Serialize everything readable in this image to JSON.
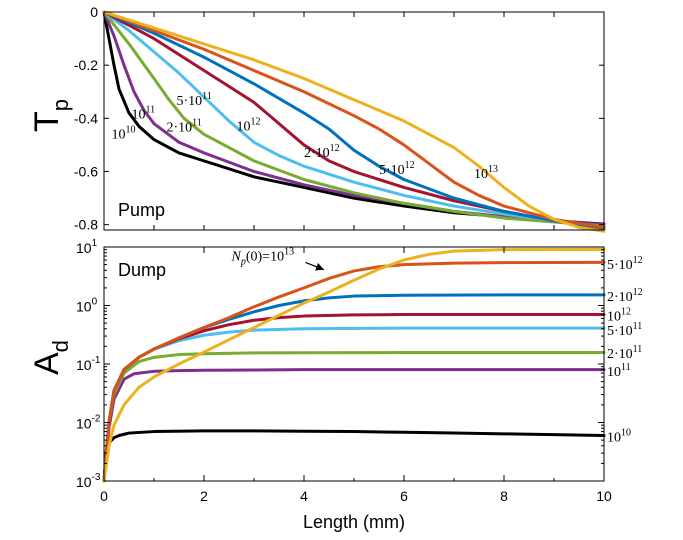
{
  "chart_data": [
    {
      "type": "line",
      "ylabel": "T",
      "ylabel_sub": "p",
      "panel_label": "Pump",
      "xlim": [
        0,
        10
      ],
      "ylim": [
        -0.82,
        0
      ],
      "yscale": "linear",
      "yticks": [
        0,
        -0.2,
        -0.4,
        -0.6,
        -0.8
      ],
      "ytick_labels": [
        "0",
        "-0.2",
        "-0.4",
        "-0.6",
        "-0.8"
      ],
      "grid": false,
      "series": [
        {
          "color": "#000000",
          "x": [
            0,
            0.1,
            0.2,
            0.3,
            0.5,
            0.7,
            1,
            1.5,
            2,
            3,
            4,
            5,
            6,
            7,
            8,
            9,
            10
          ],
          "y": [
            0,
            -0.1,
            -0.2,
            -0.29,
            -0.38,
            -0.43,
            -0.48,
            -0.53,
            -0.56,
            -0.62,
            -0.66,
            -0.7,
            -0.73,
            -0.755,
            -0.77,
            -0.785,
            -0.798
          ]
        },
        {
          "color": "#7E2F8E",
          "x": [
            0,
            0.2,
            0.4,
            0.6,
            0.8,
            1,
            1.5,
            2,
            3,
            4,
            5,
            6,
            7,
            8,
            9,
            10
          ],
          "y": [
            0,
            -0.09,
            -0.2,
            -0.3,
            -0.37,
            -0.42,
            -0.49,
            -0.53,
            -0.6,
            -0.65,
            -0.69,
            -0.72,
            -0.75,
            -0.77,
            -0.785,
            -0.8
          ]
        },
        {
          "color": "#77AC30",
          "x": [
            0,
            0.5,
            1,
            1.3,
            1.6,
            2,
            2.5,
            3,
            4,
            5,
            6,
            7,
            8,
            9,
            10
          ],
          "y": [
            0,
            -0.12,
            -0.25,
            -0.33,
            -0.4,
            -0.46,
            -0.51,
            -0.56,
            -0.63,
            -0.68,
            -0.72,
            -0.75,
            -0.775,
            -0.79,
            -0.805
          ]
        },
        {
          "color": "#4DBEEE",
          "x": [
            0,
            0.5,
            1,
            1.5,
            2,
            2.5,
            3,
            3.5,
            4,
            5,
            6,
            7,
            8,
            9,
            10
          ],
          "y": [
            0,
            -0.07,
            -0.15,
            -0.23,
            -0.32,
            -0.41,
            -0.49,
            -0.54,
            -0.58,
            -0.64,
            -0.69,
            -0.73,
            -0.76,
            -0.785,
            -0.81
          ]
        },
        {
          "color": "#A2142F",
          "x": [
            0,
            1,
            2,
            3,
            3.5,
            4,
            4.5,
            5,
            6,
            7,
            8,
            9,
            10
          ],
          "y": [
            0,
            -0.1,
            -0.22,
            -0.34,
            -0.42,
            -0.5,
            -0.56,
            -0.6,
            -0.66,
            -0.71,
            -0.75,
            -0.785,
            -0.815
          ]
        },
        {
          "color": "#0072BD",
          "x": [
            0,
            1,
            2,
            3,
            4,
            4.5,
            5,
            5.5,
            6,
            7,
            8,
            9,
            10
          ],
          "y": [
            0,
            -0.08,
            -0.17,
            -0.27,
            -0.38,
            -0.44,
            -0.52,
            -0.58,
            -0.63,
            -0.7,
            -0.75,
            -0.785,
            -0.815
          ]
        },
        {
          "color": "#D95319",
          "x": [
            0,
            1,
            2,
            3,
            4,
            5,
            5.5,
            6,
            6.5,
            7,
            7.5,
            8,
            9,
            10
          ],
          "y": [
            0,
            -0.07,
            -0.14,
            -0.22,
            -0.3,
            -0.39,
            -0.44,
            -0.5,
            -0.57,
            -0.64,
            -0.69,
            -0.73,
            -0.78,
            -0.81
          ]
        },
        {
          "color": "#EDB120",
          "x": [
            0,
            1,
            2,
            3,
            4,
            5,
            6,
            7,
            7.5,
            8,
            8.5,
            9,
            9.5,
            10
          ],
          "y": [
            0,
            -0.06,
            -0.12,
            -0.18,
            -0.25,
            -0.33,
            -0.41,
            -0.51,
            -0.58,
            -0.66,
            -0.73,
            -0.78,
            -0.81,
            -0.825
          ]
        }
      ],
      "annotations": [
        {
          "base": "10",
          "exp": "10",
          "x": 0.15,
          "y": -0.475
        },
        {
          "base": "10",
          "exp": "11",
          "x": 0.55,
          "y": -0.4
        },
        {
          "base": "2·10",
          "exp": "11",
          "x": 1.25,
          "y": -0.45
        },
        {
          "base": "5·10",
          "exp": "11",
          "x": 1.45,
          "y": -0.35
        },
        {
          "base": "10",
          "exp": "12",
          "x": 2.65,
          "y": -0.445
        },
        {
          "base": "2·10",
          "exp": "12",
          "x": 4.0,
          "y": -0.545
        },
        {
          "base": "5·10",
          "exp": "12",
          "x": 5.5,
          "y": -0.61
        },
        {
          "base": "10",
          "exp": "13",
          "x": 7.4,
          "y": -0.625
        }
      ]
    },
    {
      "type": "line",
      "ylabel": "A",
      "ylabel_sub": "d",
      "panel_label": "Dump",
      "xlabel": "Length (mm)",
      "xlim": [
        0,
        10
      ],
      "ylim": [
        0.001,
        10
      ],
      "yscale": "log",
      "xticks": [
        0,
        2,
        4,
        6,
        8,
        10
      ],
      "xtick_labels": [
        "0",
        "2",
        "4",
        "6",
        "8",
        "10"
      ],
      "yticks": [
        0.001,
        0.01,
        0.1,
        1,
        10
      ],
      "ytick_bases": [
        "10",
        "10",
        "10",
        "10",
        "10"
      ],
      "ytick_exps": [
        "-3",
        "-2",
        "-1",
        "0",
        "1"
      ],
      "grid": false,
      "series": [
        {
          "color": "#000000",
          "x": [
            0,
            0.05,
            0.1,
            0.2,
            0.3,
            0.5,
            1,
            2,
            3,
            4,
            5,
            6,
            7,
            8,
            9,
            10
          ],
          "y": [
            0.001,
            0.0035,
            0.0045,
            0.0055,
            0.006,
            0.0066,
            0.007,
            0.0072,
            0.0072,
            0.0071,
            0.007,
            0.0068,
            0.0066,
            0.0064,
            0.0062,
            0.006
          ]
        },
        {
          "color": "#7E2F8E",
          "x": [
            0,
            0.1,
            0.2,
            0.4,
            0.6,
            1,
            1.5,
            2,
            3,
            4,
            6,
            8,
            10
          ],
          "y": [
            0.001,
            0.008,
            0.025,
            0.055,
            0.068,
            0.075,
            0.077,
            0.078,
            0.079,
            0.08,
            0.08,
            0.08,
            0.08
          ]
        },
        {
          "color": "#77AC30",
          "x": [
            0,
            0.1,
            0.2,
            0.4,
            0.7,
            1,
            1.5,
            2,
            3,
            4,
            6,
            8,
            10
          ],
          "y": [
            0.001,
            0.01,
            0.03,
            0.07,
            0.11,
            0.13,
            0.145,
            0.15,
            0.155,
            0.156,
            0.157,
            0.157,
            0.157
          ]
        },
        {
          "color": "#4DBEEE",
          "x": [
            0,
            0.1,
            0.2,
            0.4,
            0.7,
            1,
            1.5,
            2,
            2.5,
            3,
            4,
            6,
            8,
            10
          ],
          "y": [
            0.001,
            0.01,
            0.035,
            0.08,
            0.13,
            0.18,
            0.25,
            0.31,
            0.35,
            0.38,
            0.4,
            0.41,
            0.41,
            0.41
          ]
        },
        {
          "color": "#A2142F",
          "x": [
            0,
            0.1,
            0.2,
            0.4,
            0.7,
            1,
            1.5,
            2,
            2.5,
            3,
            3.5,
            4,
            5,
            6,
            8,
            10
          ],
          "y": [
            0.001,
            0.01,
            0.035,
            0.08,
            0.13,
            0.18,
            0.27,
            0.37,
            0.47,
            0.56,
            0.62,
            0.66,
            0.69,
            0.7,
            0.7,
            0.7
          ]
        },
        {
          "color": "#0072BD",
          "x": [
            0,
            0.1,
            0.2,
            0.4,
            0.7,
            1,
            1.5,
            2,
            2.5,
            3,
            3.5,
            4,
            4.5,
            5,
            6,
            8,
            10
          ],
          "y": [
            0.001,
            0.01,
            0.035,
            0.08,
            0.13,
            0.18,
            0.28,
            0.42,
            0.58,
            0.78,
            1.0,
            1.2,
            1.35,
            1.45,
            1.5,
            1.52,
            1.52
          ]
        },
        {
          "color": "#D95319",
          "x": [
            0,
            0.1,
            0.2,
            0.4,
            0.7,
            1,
            1.5,
            2,
            2.5,
            3,
            3.5,
            4,
            4.5,
            5,
            5.5,
            6,
            7,
            8,
            10
          ],
          "y": [
            0.001,
            0.01,
            0.035,
            0.08,
            0.13,
            0.18,
            0.28,
            0.42,
            0.62,
            0.95,
            1.4,
            2.0,
            2.9,
            3.9,
            4.6,
            5.0,
            5.3,
            5.4,
            5.45
          ]
        },
        {
          "color": "#EDB120",
          "x": [
            0,
            0.05,
            0.1,
            0.2,
            0.4,
            0.7,
            1,
            1.5,
            2,
            2.5,
            3,
            3.5,
            4,
            4.5,
            5,
            5.5,
            6,
            6.5,
            7,
            8,
            10
          ],
          "y": [
            0.001,
            0.002,
            0.004,
            0.009,
            0.02,
            0.04,
            0.06,
            0.1,
            0.16,
            0.26,
            0.42,
            0.68,
            1.1,
            1.7,
            2.7,
            4.2,
            6.0,
            7.5,
            8.5,
            9.0,
            9.1
          ]
        }
      ],
      "right_labels": [
        {
          "base": "5·10",
          "exp": "12",
          "y": 5.1
        },
        {
          "base": "2·10",
          "exp": "12",
          "y": 1.45
        },
        {
          "base": "10",
          "exp": "12",
          "y": 0.68
        },
        {
          "base": "5·10",
          "exp": "11",
          "y": 0.38
        },
        {
          "base": "2·10",
          "exp": "11",
          "y": 0.155
        },
        {
          "base": "10",
          "exp": "11",
          "y": 0.076
        },
        {
          "base": "10",
          "exp": "10",
          "y": 0.0058
        }
      ],
      "callout": {
        "var": "N",
        "sub": "p",
        "rest": "(0)=10",
        "exp": "13",
        "x": 2.55,
        "y": 5.9,
        "arrow_to_x": 4.4,
        "arrow_to_y": 4.1
      }
    }
  ]
}
